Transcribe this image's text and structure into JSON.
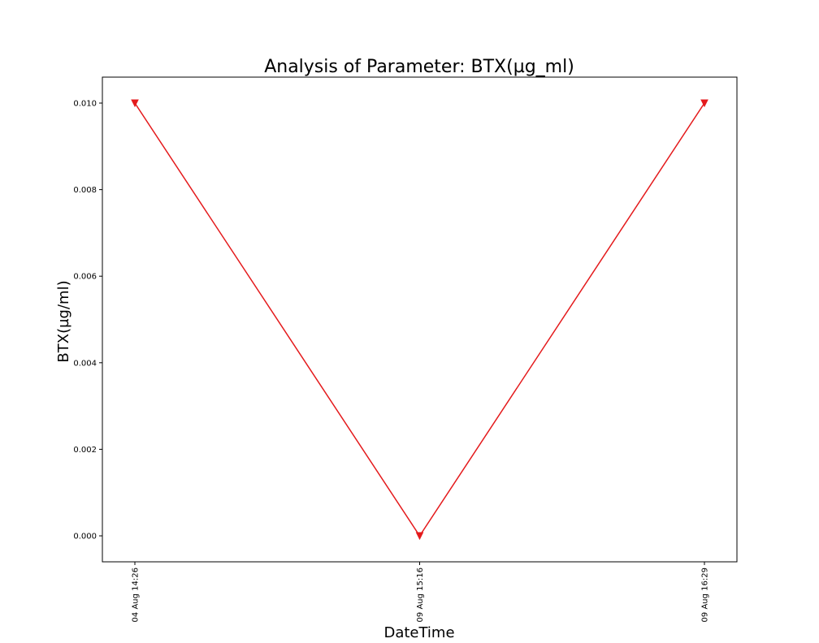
{
  "chart_data": {
    "type": "line",
    "title": "Analysis of Parameter: BTX(µg_ml)",
    "xlabel": "DateTime",
    "ylabel": "BTX(µg/ml)",
    "x": [
      "04 Aug 14:26",
      "09 Aug 15:16",
      "09 Aug 16:29"
    ],
    "series": [
      {
        "values": [
          0.01,
          0.0,
          0.01
        ],
        "color": "#e41a1c",
        "marker": "triangle-down"
      }
    ],
    "yticks": [
      "0.000",
      "0.002",
      "0.004",
      "0.006",
      "0.008",
      "0.010"
    ],
    "ylim": [
      -0.0006,
      0.0106
    ],
    "grid": false
  }
}
